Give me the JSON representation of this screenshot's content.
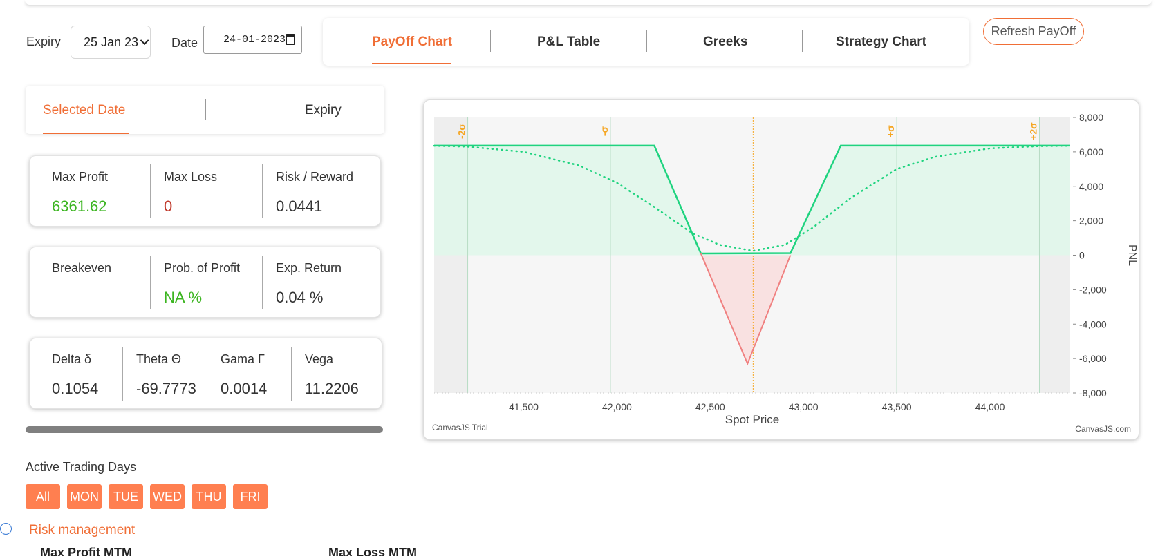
{
  "header": {
    "expiry_label": "Expiry",
    "expiry_value": "25 Jan 23",
    "date_label": "Date",
    "date_value": "24-01-2023"
  },
  "tabs": [
    {
      "label": "PayOff Chart",
      "active": true
    },
    {
      "label": "P&L Table",
      "active": false
    },
    {
      "label": "Greeks",
      "active": false
    },
    {
      "label": "Strategy Chart",
      "active": false
    }
  ],
  "refresh_label": "Refresh PayOff",
  "subtabs": [
    {
      "label": "Selected Date",
      "active": true
    },
    {
      "label": "Expiry",
      "active": false
    }
  ],
  "stats": {
    "max_profit": {
      "label": "Max Profit",
      "value": "6361.62"
    },
    "max_loss": {
      "label": "Max Loss",
      "value": "0"
    },
    "risk_reward": {
      "label": "Risk / Reward",
      "value": "0.0441"
    },
    "breakeven": {
      "label": "Breakeven",
      "value": ""
    },
    "prob_profit": {
      "label": "Prob. of Profit",
      "value": "NA %"
    },
    "exp_return": {
      "label": "Exp. Return",
      "value": "0.04 %"
    }
  },
  "greeks": {
    "delta": {
      "label": "Delta δ",
      "value": "0.1054"
    },
    "theta": {
      "label": "Theta Θ",
      "value": "-69.7773"
    },
    "gamma": {
      "label": "Gama Γ",
      "value": "0.0014"
    },
    "vega": {
      "label": "Vega",
      "value": "11.2206"
    }
  },
  "active_trading_days": {
    "label": "Active Trading Days",
    "days": [
      "All",
      "MON",
      "TUE",
      "WED",
      "THU",
      "FRI"
    ]
  },
  "risk_management": {
    "title": "Risk management",
    "max_profit_mtm": "Max Profit MTM",
    "max_loss_mtm": "Max Loss MTM"
  },
  "colors": {
    "accent": "#f06e36",
    "button": "#ff7f50",
    "payoff_line": "#1fd37f",
    "loss_line": "#f08080",
    "profit_fill": "#dff7ea",
    "loss_fill": "#f9e1e1",
    "sigma_label": "#f5a623"
  },
  "chart_data": {
    "type": "line",
    "xlabel": "Spot Price",
    "ylabel": "PNL",
    "xlim": [
      41020,
      44430
    ],
    "ylim": [
      -8000,
      8000
    ],
    "x_ticks": [
      41500,
      42000,
      42500,
      43000,
      43500,
      44000
    ],
    "x_tick_labels": [
      "41,500",
      "42,000",
      "42,500",
      "43,000",
      "43,500",
      "44,000"
    ],
    "y_ticks": [
      8000,
      6000,
      4000,
      2000,
      0,
      -2000,
      -4000,
      -6000,
      -8000
    ],
    "y_tick_labels": [
      "8,000",
      "6,000",
      "4,000",
      "2,000",
      "0",
      "-2,000",
      "-4,000",
      "-6,000",
      "-8,000"
    ],
    "spot_price": 42730,
    "sigma_lines": [
      {
        "label": "-2σ",
        "x": 41200
      },
      {
        "label": "-σ",
        "x": 41965
      },
      {
        "label": "+σ",
        "x": 43500
      },
      {
        "label": "+2σ",
        "x": 44265
      }
    ],
    "series": [
      {
        "style": "solid",
        "x": [
          41020,
          42200,
          42450,
          42700,
          42930,
          43200,
          44430
        ],
        "y": [
          6362,
          6362,
          100,
          -6300,
          100,
          6362,
          6362
        ]
      },
      {
        "style": "dotted",
        "x": [
          41020,
          41200,
          41500,
          41800,
          42000,
          42200,
          42400,
          42550,
          42730,
          42900,
          43050,
          43250,
          43500,
          43700,
          44000,
          44265,
          44430
        ],
        "y": [
          6350,
          6300,
          6000,
          5200,
          4200,
          2800,
          1300,
          600,
          250,
          600,
          1600,
          3300,
          5000,
          5700,
          6200,
          6330,
          6350
        ]
      }
    ],
    "watermark_left": "CanvasJS Trial",
    "watermark_right": "CanvasJS.com"
  }
}
